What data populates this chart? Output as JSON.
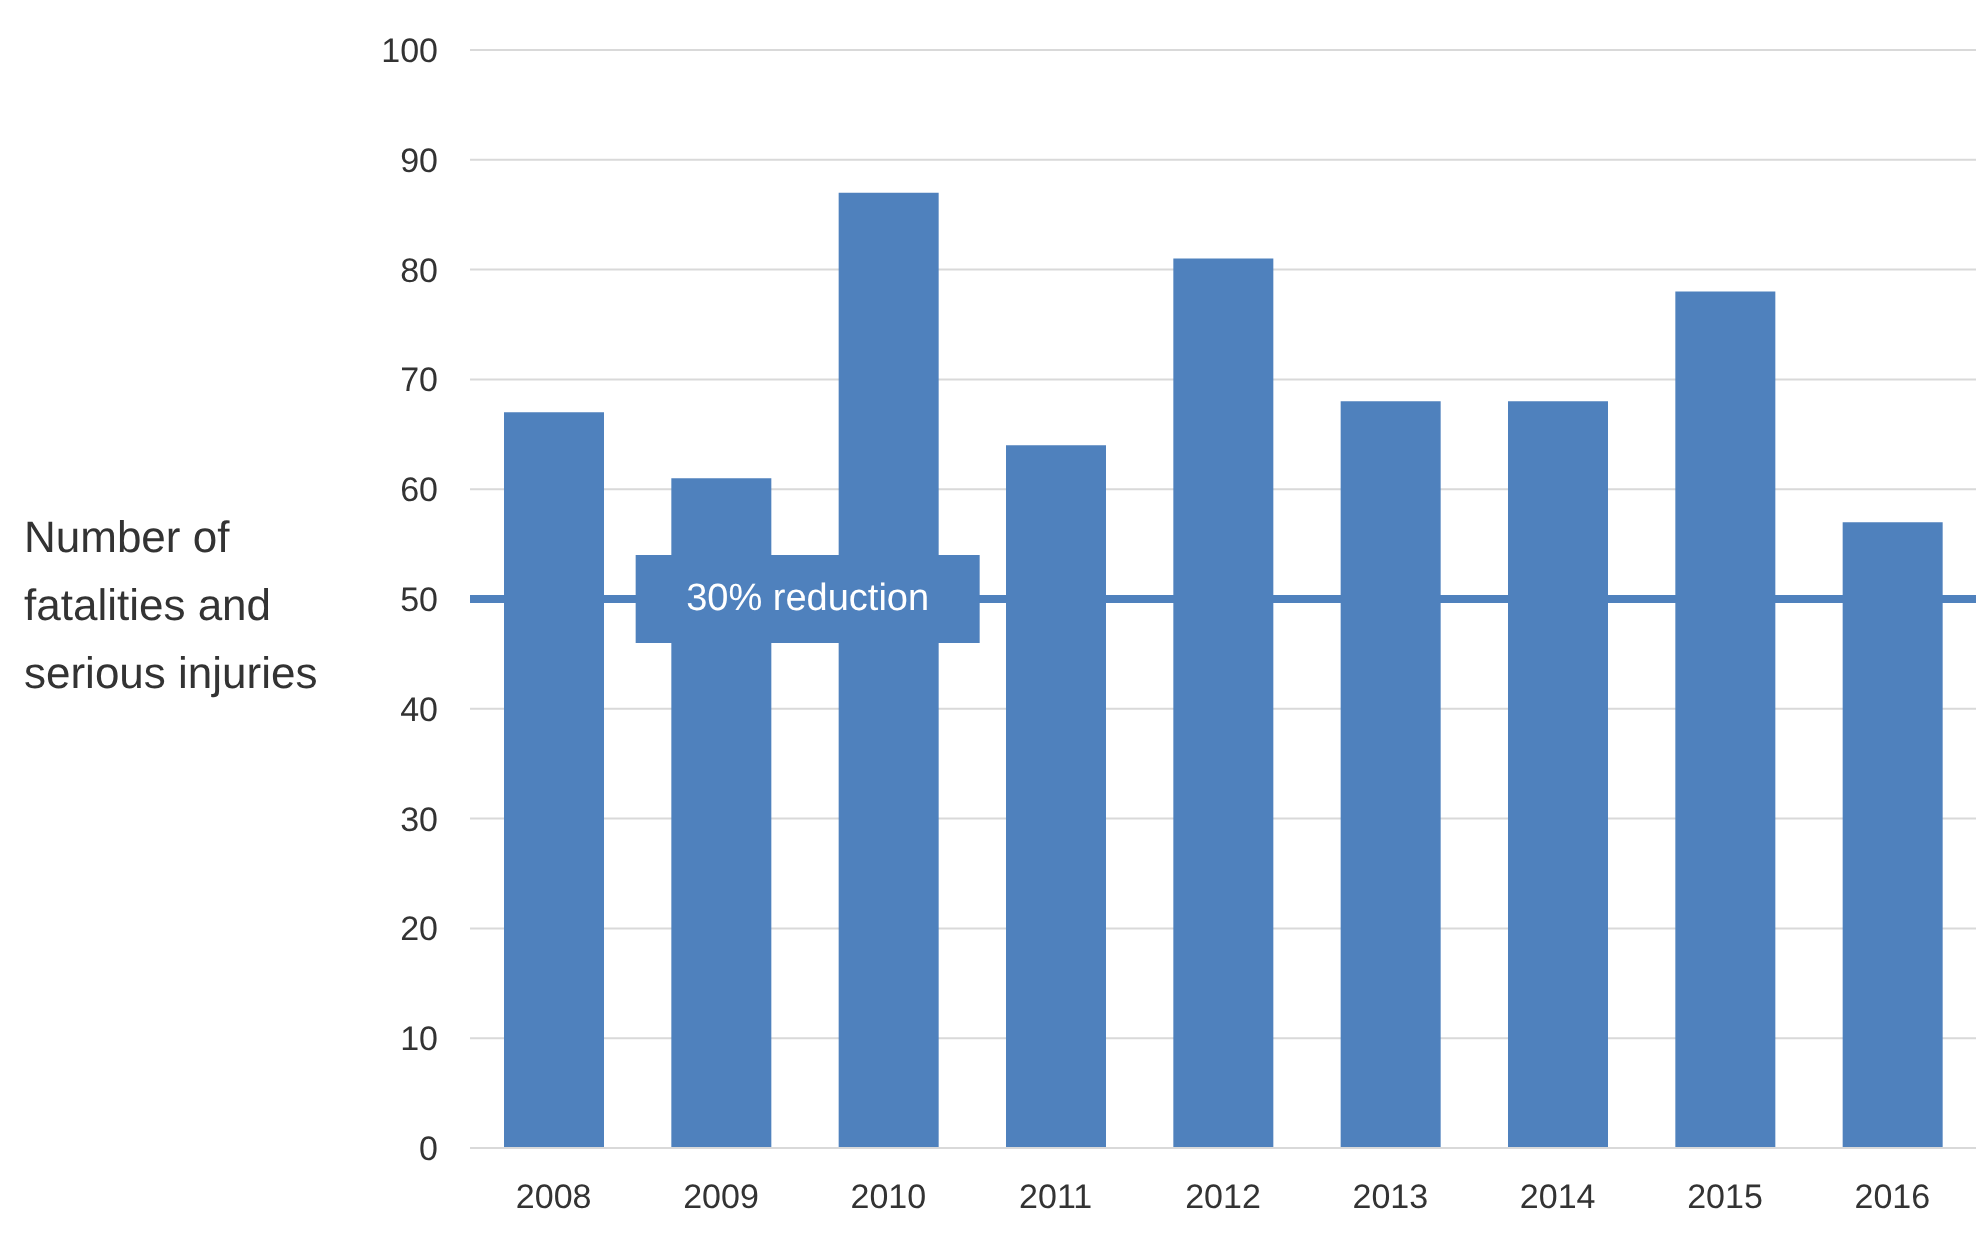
{
  "chart_data": {
    "type": "bar",
    "ylabel": "Number of fatalities and serious injuries",
    "categories": [
      "2008",
      "2009",
      "2010",
      "2011",
      "2012",
      "2013",
      "2014",
      "2015",
      "2016"
    ],
    "values": [
      67,
      61,
      87,
      64,
      81,
      68,
      68,
      78,
      57
    ],
    "color": "#4f81bd",
    "ylim": [
      0,
      100
    ],
    "yticks": [
      0,
      10,
      20,
      30,
      40,
      50,
      60,
      70,
      80,
      90,
      100
    ],
    "grid": "y",
    "ref_lines": [
      {
        "axis": "y",
        "value": 50,
        "label": "30% reduction",
        "color": "#4f81bd"
      }
    ]
  }
}
